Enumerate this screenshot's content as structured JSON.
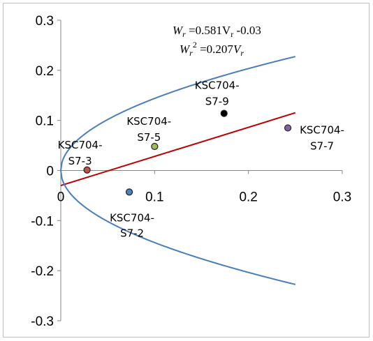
{
  "chart_data": {
    "type": "scatter",
    "xlim": [
      0,
      0.3
    ],
    "ylim": [
      -0.3,
      0.3
    ],
    "x_ticks": [
      "0",
      "0.1",
      "0.2",
      "0.3"
    ],
    "y_ticks": [
      "0.3",
      "0.2",
      "0.1",
      "0",
      "-0.1",
      "-0.2",
      "-0.3"
    ],
    "grid": false,
    "equations": [
      {
        "lhs": "W",
        "sub": "r",
        "rest": " =0.581V",
        "rsub": "r",
        "tail": " -0.03"
      },
      {
        "lhs": "W",
        "sub": "r",
        "sup": "2",
        "rest": " =0.207",
        "var": "V",
        "rsub": "r"
      }
    ],
    "points": [
      {
        "name": "KSC704-S7-3",
        "line1": "KSC704-",
        "line2": "S7-3",
        "x": 0.028,
        "y": 0.001,
        "fill": "#c0504d"
      },
      {
        "name": "KSC704-S7-2",
        "line1": "KSC704-",
        "line2": "S7-2",
        "x": 0.073,
        "y": -0.043,
        "fill": "#4f81bd"
      },
      {
        "name": "KSC704-S7-5",
        "line1": "KSC704-",
        "line2": "S7-5",
        "x": 0.1,
        "y": 0.048,
        "fill": "#9bbb59"
      },
      {
        "name": "KSC704-S7-9",
        "line1": "KSC704-",
        "line2": "S7-9",
        "x": 0.174,
        "y": 0.114,
        "fill": "#000000"
      },
      {
        "name": "KSC704-S7-7",
        "line1": "KSC704-",
        "line2": "S7-7",
        "x": 0.242,
        "y": 0.085,
        "fill": "#8064a2"
      }
    ],
    "series": [
      {
        "type": "line",
        "slope": 0.581,
        "intercept": -0.03,
        "x_range": [
          0,
          0.25
        ],
        "color": "#c00000"
      },
      {
        "type": "parabola",
        "coef": 0.207,
        "x_range": [
          0,
          0.25
        ],
        "color": "#4a7ebb"
      }
    ]
  }
}
